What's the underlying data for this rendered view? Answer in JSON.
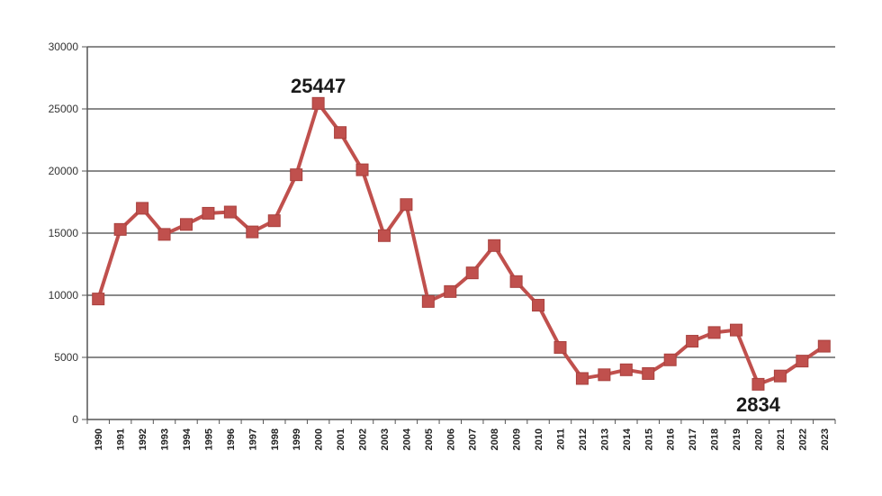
{
  "chart_data": {
    "type": "line",
    "title": "",
    "xlabel": "",
    "ylabel": "",
    "ylim": [
      0,
      30000
    ],
    "yticks": [
      "0",
      "5000",
      "10000",
      "15000",
      "20000",
      "25000",
      "30000"
    ],
    "categories": [
      "1990",
      "1991",
      "1992",
      "1993",
      "1994",
      "1995",
      "1996",
      "1997",
      "1998",
      "1999",
      "2000",
      "2001",
      "2002",
      "2003",
      "2004",
      "2005",
      "2006",
      "2007",
      "2008",
      "2009",
      "2010",
      "2011",
      "2012",
      "2013",
      "2014",
      "2015",
      "2016",
      "2017",
      "2018",
      "2019",
      "2020",
      "2021",
      "2022",
      "2023"
    ],
    "series": [
      {
        "name": "",
        "color": "#c0504d",
        "values": [
          9700,
          15300,
          17000,
          14900,
          15700,
          16600,
          16700,
          15100,
          16000,
          19700,
          25447,
          23100,
          20100,
          14800,
          17300,
          9500,
          10300,
          11800,
          14000,
          11100,
          9200,
          5800,
          3300,
          3600,
          4000,
          3700,
          4800,
          6300,
          7000,
          7200,
          2834,
          3500,
          4700,
          5900
        ]
      }
    ],
    "annotations": [
      {
        "text": "25447",
        "category": "2000",
        "value": 25447
      },
      {
        "text": "2834",
        "category": "2020",
        "value": 2834
      }
    ],
    "grid": true,
    "legend": "none"
  }
}
